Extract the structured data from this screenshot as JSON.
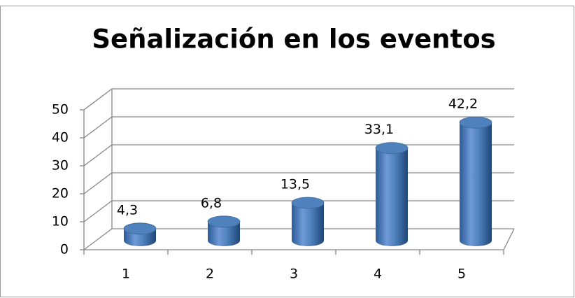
{
  "chart_data": {
    "type": "bar3d",
    "title": "Señalización en los eventos",
    "categories": [
      "1",
      "2",
      "3",
      "4",
      "5"
    ],
    "values": [
      4.3,
      6.8,
      13.5,
      33.1,
      42.2
    ],
    "value_labels": [
      "4,3",
      "6,8",
      "13,5",
      "33,1",
      "42,2"
    ],
    "color": "#4f81bd",
    "ylim": [
      0,
      50
    ],
    "yticks": [
      0,
      10,
      20,
      30,
      40,
      50
    ],
    "grid": true
  }
}
